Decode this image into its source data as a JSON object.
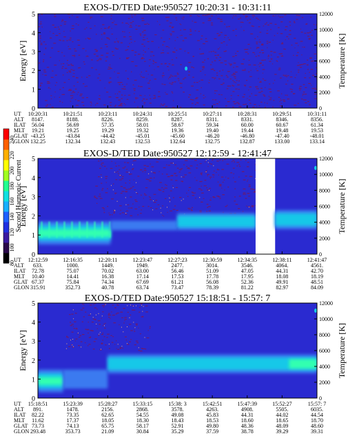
{
  "figure": {
    "colorbar": {
      "label": "Second Harmonic Current",
      "ticks": [
        "80",
        "100",
        "120",
        "140",
        "160",
        "180",
        "200",
        "220",
        "240"
      ],
      "colors": [
        "#000000",
        "#2a0a4a",
        "#3a1aa0",
        "#2030e0",
        "#1e60ff",
        "#18b0ff",
        "#10e0e0",
        "#20ff90",
        "#a0ff20",
        "#ffff00",
        "#ffb000",
        "#ff6000",
        "#ff0000"
      ]
    },
    "colors": {
      "background": "#2a2ad0",
      "noise": "#6a1a6e",
      "band_low": "#3a7af0",
      "band_mid": "#18c8e8",
      "band_high": "#30ffb0",
      "gap": "#ffffff"
    }
  },
  "panels": [
    {
      "title": "EXOS-D/TED    Date:950527    10:20:31 - 10:31:11",
      "ylabel_left": "Energy [eV]",
      "ylabel_right": "Temperature [K]",
      "ephem_labels": [
        "UT",
        "ALT",
        "ILAT",
        "MLT",
        "GLAT",
        "GLON"
      ],
      "ephem": [
        [
          "10:20:31",
          "10:21:51",
          "10:23:11",
          "10:24:31",
          "10:25:51",
          "10:27:11",
          "10:28:31",
          "10:29:51",
          "10:31:11"
        ],
        [
          "8147.",
          "8188.",
          "8226.",
          "8259.",
          "8287.",
          "8311.",
          "8331.",
          "8346.",
          "8356."
        ],
        [
          "56.04",
          "56.69",
          "57.35",
          "58.01",
          "58.67",
          "59.34",
          "60.00",
          "60.67",
          "61.34"
        ],
        [
          "19.21",
          "19.25",
          "19.29",
          "19.32",
          "19.36",
          "19.40",
          "19.44",
          "19.48",
          "19.53"
        ],
        [
          "-43.25",
          "-43.84",
          "-44.42",
          "-45.01",
          "-45.60",
          "-46.20",
          "-46.80",
          "-47.40",
          "-48.01"
        ],
        [
          "132.25",
          "132.34",
          "132.43",
          "132.53",
          "132.64",
          "132.75",
          "132.87",
          "133.00",
          "133.14"
        ]
      ]
    },
    {
      "title": "EXOS-D/TED    Date:950527    12:12:59 - 12:41:47",
      "ylabel_left": "Energy [eV]",
      "ylabel_right": "Temperature [K]",
      "ephem_labels": [
        "UT",
        "ALT",
        "ILAT",
        "MLT",
        "GLAT",
        "GLON"
      ],
      "ephem": [
        [
          "12:12:59",
          "12:16:35",
          "12:20:11",
          "12:23:47",
          "12:27:23",
          "12:30:59",
          "12:34:35",
          "12:38:11",
          "12:41:47"
        ],
        [
          "633.",
          "1000.",
          "1449.",
          "1949.",
          "2477.",
          "3014.",
          "3546.",
          "4064.",
          "4561."
        ],
        [
          "72.78",
          "75.07",
          "70.02",
          "63.00",
          "56.46",
          "51.09",
          "47.05",
          "44.31",
          "42.70"
        ],
        [
          "10.40",
          "14.41",
          "16.38",
          "17.14",
          "17.53",
          "17.78",
          "17.95",
          "18.08",
          "18.19"
        ],
        [
          "67.37",
          "75.84",
          "74.34",
          "67.69",
          "61.21",
          "56.08",
          "52.36",
          "49.91",
          "48.51"
        ],
        [
          "315.91",
          "352.73",
          "40.78",
          "63.74",
          "73.47",
          "78.39",
          "81.22",
          "82.97",
          "84.09"
        ]
      ]
    },
    {
      "title": "EXOS-D/TED    Date:950527    15:18:51 - 15:57: 7",
      "ylabel_left": "Energy [eV]",
      "ylabel_right": "Temperature [K]",
      "ephem_labels": [
        "UT",
        "ALT",
        "ILAT",
        "MLT",
        "GLAT",
        "GLON"
      ],
      "ephem": [
        [
          "15:18:51",
          "15:23:39",
          "15:28:27",
          "15:33:15",
          "15:38: 3",
          "15:42:51",
          "15:47:39",
          "15:52:27",
          "15:57: 7"
        ],
        [
          "891.",
          "1478.",
          "2156.",
          "2868.",
          "3578.",
          "4263.",
          "4908.",
          "5505.",
          "6035."
        ],
        [
          "82.22",
          "73.35",
          "62.65",
          "54.55",
          "49.08",
          "45.83",
          "44.31",
          "44.02",
          "44.54"
        ],
        [
          "11.62",
          "17.37",
          "18.05",
          "18.30",
          "18.43",
          "18.53",
          "18.60",
          "18.65",
          "18.70"
        ],
        [
          "73.73",
          "74.13",
          "65.75",
          "58.17",
          "52.91",
          "49.80",
          "48.36",
          "48.09",
          "48.60"
        ],
        [
          "293.48",
          "353.73",
          "21.09",
          "30.84",
          "35.29",
          "37.59",
          "38.78",
          "39.29",
          "39.31"
        ]
      ]
    }
  ],
  "chart_data": [
    {
      "type": "heatmap",
      "title": "EXOS-D/TED    Date:950527    10:20:31 - 10:31:11",
      "xlabel": "",
      "ylabel": "Energy [eV]",
      "y2label": "Temperature [K]",
      "ylim": [
        0,
        5
      ],
      "y2lim": [
        0,
        12000
      ],
      "yticks": [
        "0",
        "1",
        "2",
        "3",
        "4",
        "5"
      ],
      "y2ticks": [
        "0",
        "2000",
        "4000",
        "6000",
        "8000",
        "10000",
        "12000"
      ],
      "x_ticks_ut": [
        "10:20:31",
        "10:21:51",
        "10:23:11",
        "10:24:31",
        "10:25:51",
        "10:27:11",
        "10:28:31",
        "10:29:51",
        "10:31:11"
      ],
      "colorbar_range": [
        80,
        240
      ],
      "features": [
        {
          "kind": "noise",
          "x_frac_range": [
            0,
            1
          ],
          "energy_range": [
            0,
            5
          ]
        },
        {
          "kind": "spot",
          "x_frac": 0.531,
          "energy": 2.1
        }
      ]
    },
    {
      "type": "heatmap",
      "title": "EXOS-D/TED    Date:950527    12:12:59 - 12:41:47",
      "xlabel": "",
      "ylabel": "Energy [eV]",
      "y2label": "Temperature [K]",
      "ylim": [
        0,
        5
      ],
      "y2lim": [
        0,
        12000
      ],
      "yticks": [
        "0",
        "1",
        "2",
        "3",
        "4",
        "5"
      ],
      "y2ticks": [
        "0",
        "2000",
        "4000",
        "6000",
        "8000",
        "10000",
        "12000"
      ],
      "x_ticks_ut": [
        "12:12:59",
        "12:16:35",
        "12:20:11",
        "12:23:47",
        "12:27:23",
        "12:30:59",
        "12:34:35",
        "12:38:11",
        "12:41:47"
      ],
      "colorbar_range": [
        80,
        240
      ],
      "features": [
        {
          "kind": "noise",
          "x_frac_range": [
            0.2,
            0.78
          ],
          "energy_range": [
            2,
            5
          ]
        },
        {
          "kind": "band",
          "x_frac_range": [
            0,
            0.26
          ],
          "energy_center": 1.1,
          "energy_width": 1.2,
          "level": "high",
          "striped": true
        },
        {
          "kind": "band",
          "x_frac_range": [
            0.26,
            0.5
          ],
          "energy_center": 1.5,
          "energy_width": 0.5,
          "level": "low"
        },
        {
          "kind": "band",
          "x_frac_range": [
            0.5,
            0.78
          ],
          "energy_center": 1.7,
          "energy_width": 0.9,
          "level": "mid"
        },
        {
          "kind": "gap",
          "x_frac_range": [
            0.78,
            0.85
          ]
        },
        {
          "kind": "band",
          "x_frac_range": [
            0.85,
            1
          ],
          "energy_center": 1.8,
          "energy_width": 1.0,
          "level": "mid"
        },
        {
          "kind": "spot",
          "x_frac": 0.995,
          "energy": 4.5
        }
      ]
    },
    {
      "type": "heatmap",
      "title": "EXOS-D/TED    Date:950527    15:18:51 - 15:57: 7",
      "xlabel": "",
      "ylabel": "Energy [eV]",
      "y2label": "Temperature [K]",
      "ylim": [
        0,
        5
      ],
      "y2lim": [
        0,
        12000
      ],
      "yticks": [
        "0",
        "1",
        "2",
        "3",
        "4",
        "5"
      ],
      "y2ticks": [
        "0",
        "2000",
        "4000",
        "6000",
        "8000",
        "10000",
        "12000"
      ],
      "x_ticks_ut": [
        "15:18:51",
        "15:23:39",
        "15:28:27",
        "15:33:15",
        "15:38: 3",
        "15:42:51",
        "15:47:39",
        "15:52:27",
        "15:57: 7"
      ],
      "colorbar_range": [
        80,
        240
      ],
      "features": [
        {
          "kind": "noise",
          "x_frac_range": [
            0.1,
            0.4
          ],
          "energy_range": [
            2.5,
            5
          ]
        },
        {
          "kind": "band",
          "x_frac_range": [
            0,
            0.09
          ],
          "energy_center": 0.9,
          "energy_width": 1.2,
          "level": "high"
        },
        {
          "kind": "band",
          "x_frac_range": [
            0.09,
            0.25
          ],
          "energy_center": 1.0,
          "energy_width": 1.0,
          "level": "low"
        },
        {
          "kind": "band",
          "x_frac_range": [
            0.25,
            1
          ],
          "energy_center": 1.8,
          "energy_width": 1.0,
          "level": "mid",
          "rising": true
        },
        {
          "kind": "spot",
          "x_frac": 0.995,
          "energy": 4.6
        }
      ]
    }
  ]
}
